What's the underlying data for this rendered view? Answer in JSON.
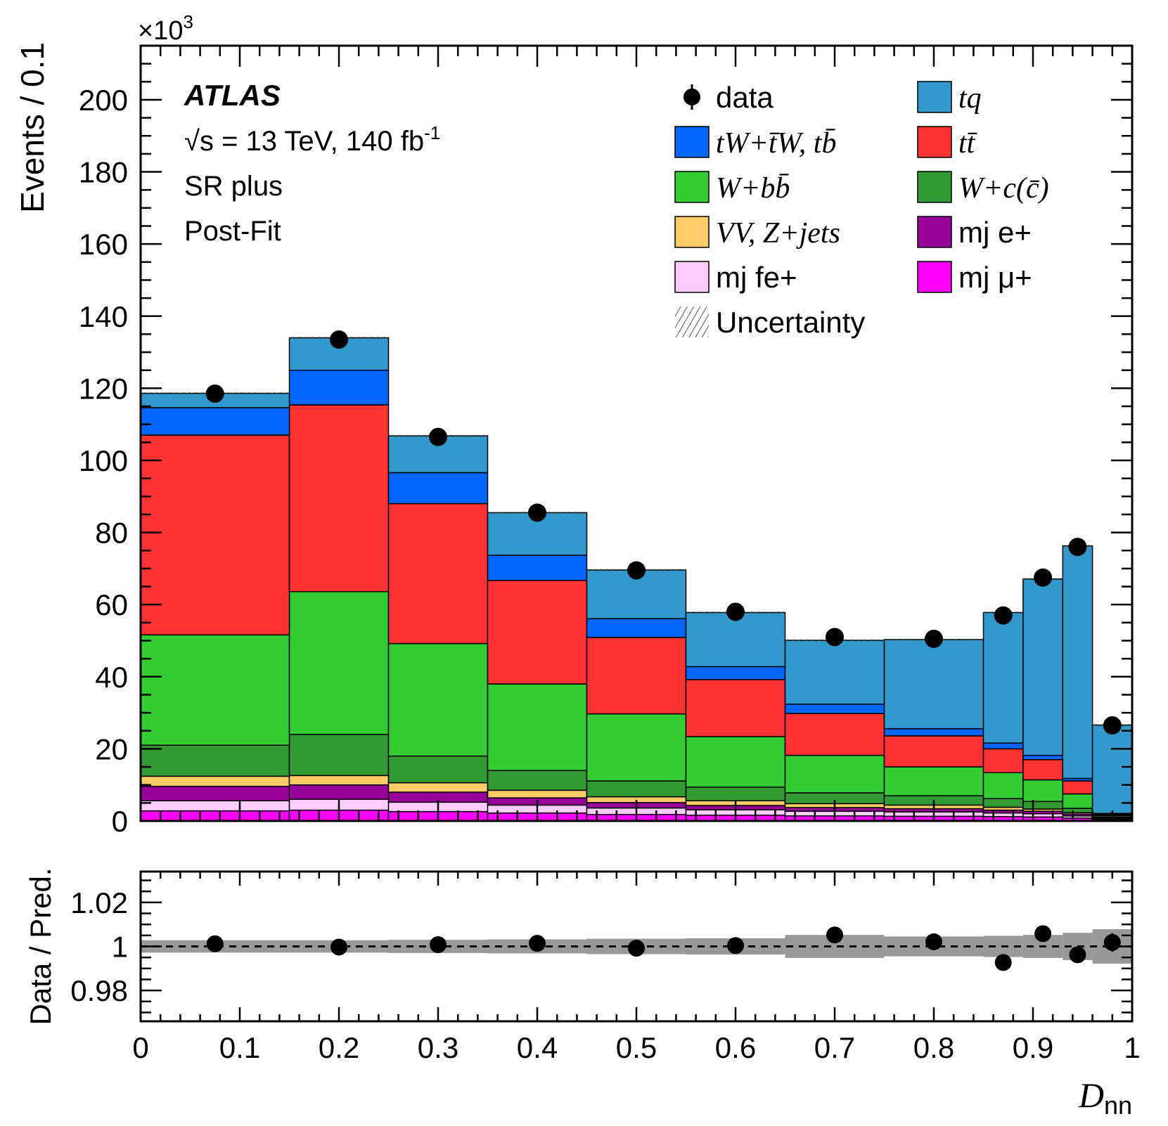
{
  "chart_data": {
    "type": "bar",
    "stacked": true,
    "bin_edges": [
      0,
      0.15,
      0.25,
      0.35,
      0.45,
      0.55,
      0.65,
      0.75,
      0.85,
      0.89,
      0.93,
      0.96,
      1.0
    ],
    "ylim": [
      0,
      215
    ],
    "y_multiplier_label": "×10",
    "y_multiplier_exponent": "3",
    "ylabel": "Events / 0.1",
    "yticks": [
      0,
      20,
      40,
      60,
      80,
      100,
      120,
      140,
      160,
      180,
      200
    ],
    "xticks": [
      "0",
      "0.1",
      "0.2",
      "0.3",
      "0.4",
      "0.5",
      "0.6",
      "0.7",
      "0.8",
      "0.9",
      "1"
    ],
    "xlabel_main": "D",
    "xlabel_sub": "nn",
    "annotations": {
      "experiment": "ATLAS",
      "energy_root": "√s",
      "energy": " = 13 TeV, 140 fb",
      "lumi_exp": "-1",
      "region": "SR plus",
      "fit": "Post-Fit"
    },
    "series": [
      {
        "name": "mj μ+",
        "color": "#ff00ff",
        "values": [
          2.8,
          3.0,
          2.6,
          2.2,
          1.8,
          1.6,
          1.4,
          1.3,
          1.2,
          1.1,
          0.8,
          0.4
        ]
      },
      {
        "name": "mj fe+",
        "color": "#ffccff",
        "values": [
          2.8,
          3.0,
          2.6,
          2.2,
          1.8,
          1.5,
          1.3,
          1.2,
          1.0,
          0.9,
          0.6,
          0.3
        ]
      },
      {
        "name": "mj e+",
        "color": "#990099",
        "values": [
          4.0,
          4.0,
          2.8,
          2.0,
          1.5,
          1.2,
          1.0,
          0.9,
          0.8,
          0.7,
          0.5,
          0.2
        ]
      },
      {
        "name": "VV, Z+jets",
        "color": "#ffcc66",
        "values": [
          2.8,
          2.6,
          2.6,
          2.1,
          1.6,
          1.3,
          1.1,
          1.0,
          0.8,
          0.6,
          0.4,
          0.2
        ]
      },
      {
        "name": "W+c(c̄)",
        "color": "#339933",
        "values": [
          8.6,
          11.4,
          7.4,
          5.5,
          4.4,
          3.8,
          3.0,
          2.6,
          2.4,
          2.1,
          1.2,
          0.4
        ]
      },
      {
        "name": "W+bb̄",
        "color": "#33cc33",
        "values": [
          30.6,
          39.6,
          31.2,
          24.0,
          18.6,
          14.0,
          10.4,
          8.0,
          7.2,
          6.0,
          4.0,
          0.3
        ]
      },
      {
        "name": "tt̄",
        "color": "#ff3333",
        "values": [
          55.4,
          51.8,
          38.8,
          28.7,
          21.2,
          15.8,
          11.6,
          8.6,
          6.6,
          5.6,
          3.6,
          0.2
        ]
      },
      {
        "name": "tW+t̄W, tb̄",
        "color": "#0066ff",
        "values": [
          7.6,
          9.6,
          8.6,
          7.0,
          5.2,
          3.6,
          2.6,
          2.0,
          1.6,
          1.2,
          0.7,
          0.1
        ]
      },
      {
        "name": "tq",
        "color": "#3399cc",
        "values": [
          4.0,
          9.0,
          10.2,
          11.8,
          13.5,
          15.0,
          17.7,
          24.7,
          36.2,
          48.9,
          64.5,
          24.5
        ]
      }
    ],
    "data_points": {
      "name": "data",
      "x": [
        0.075,
        0.2,
        0.3,
        0.4,
        0.5,
        0.6,
        0.7,
        0.8,
        0.87,
        0.91,
        0.945,
        0.98
      ],
      "y": [
        118.5,
        133.5,
        106.5,
        85.5,
        69.5,
        58.0,
        51.0,
        50.5,
        57.0,
        67.5,
        76.0,
        26.5
      ]
    },
    "legend": {
      "placement": "top-right",
      "entries": [
        {
          "label": "data",
          "kind": "marker"
        },
        {
          "label": "tq",
          "kind": "box",
          "color": "#3399cc"
        },
        {
          "label": "tW+t̄W, tb̄",
          "kind": "box",
          "color": "#0066ff"
        },
        {
          "label": "tt̄",
          "kind": "box",
          "color": "#ff3333"
        },
        {
          "label": "W+bb̄",
          "kind": "box",
          "color": "#33cc33"
        },
        {
          "label": "W+c(c̄)",
          "kind": "box",
          "color": "#339933"
        },
        {
          "label": "VV, Z+jets",
          "kind": "box",
          "color": "#ffcc66"
        },
        {
          "label": "mj e+",
          "kind": "box",
          "color": "#990099"
        },
        {
          "label": "mj fe+",
          "kind": "box",
          "color": "#ffccff"
        },
        {
          "label": "mj μ+",
          "kind": "box",
          "color": "#ff00ff"
        },
        {
          "label": "Uncertainty",
          "kind": "hatch"
        }
      ]
    },
    "ratio": {
      "ylabel": "Data / Pred.",
      "ylim": [
        0.966,
        1.034
      ],
      "yticks": [
        "0.98",
        "1",
        "1.02"
      ],
      "ytick_values": [
        0.98,
        1.0,
        1.02
      ],
      "band_halfwidth": [
        0.0028,
        0.0028,
        0.003,
        0.0032,
        0.0035,
        0.0037,
        0.0052,
        0.0045,
        0.0048,
        0.0052,
        0.0062,
        0.0078
      ],
      "values": [
        1.0012,
        0.9997,
        1.0008,
        1.0014,
        0.9992,
        1.0004,
        1.0052,
        1.0021,
        0.9927,
        1.0058,
        0.9962,
        1.0018
      ],
      "errors": [
        0.0005,
        0.0005,
        0.0006,
        0.0007,
        0.0008,
        0.0009,
        0.001,
        0.001,
        0.0028,
        0.0026,
        0.0024,
        0.0042
      ]
    }
  }
}
